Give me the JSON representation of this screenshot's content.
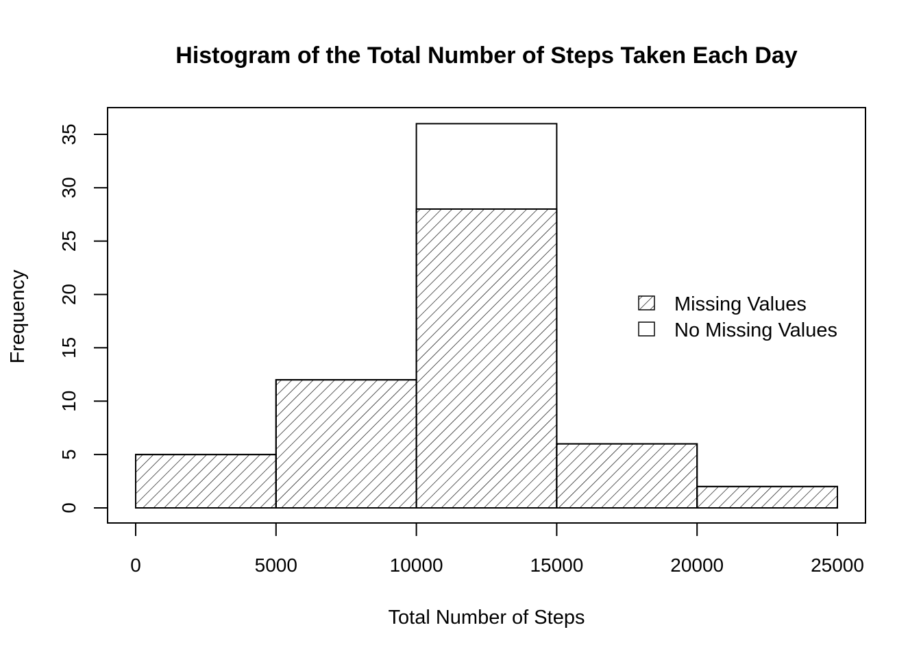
{
  "chart_data": {
    "type": "bar",
    "title": "Histogram of the Total Number of Steps Taken Each Day",
    "xlabel": "Total Number of Steps",
    "ylabel": "Frequency",
    "bins": [
      {
        "start": 0,
        "end": 5000
      },
      {
        "start": 5000,
        "end": 10000
      },
      {
        "start": 10000,
        "end": 15000
      },
      {
        "start": 15000,
        "end": 20000
      },
      {
        "start": 20000,
        "end": 25000
      }
    ],
    "series": [
      {
        "name": "No Missing Values",
        "values": [
          5,
          12,
          36,
          6,
          2
        ],
        "fill": "none",
        "color": "#000000"
      },
      {
        "name": "Missing Values",
        "values": [
          5,
          12,
          28,
          6,
          2
        ],
        "fill": "hatched",
        "color": "#000000"
      }
    ],
    "xlim": [
      0,
      25000
    ],
    "ylim": [
      0,
      35
    ],
    "xticks": [
      0,
      5000,
      10000,
      15000,
      20000,
      25000
    ],
    "xtick_labels": [
      "0",
      "5000",
      "10000",
      "15000",
      "20000",
      "25000"
    ],
    "yticks": [
      0,
      5,
      10,
      15,
      20,
      25,
      30,
      35
    ],
    "ytick_labels": [
      "0",
      "5",
      "10",
      "15",
      "20",
      "25",
      "30",
      "35"
    ],
    "grid": false,
    "legend": {
      "position": "right",
      "entries": [
        {
          "label": "Missing Values",
          "fill": "hatched"
        },
        {
          "label": "No Missing Values",
          "fill": "none"
        }
      ]
    }
  }
}
